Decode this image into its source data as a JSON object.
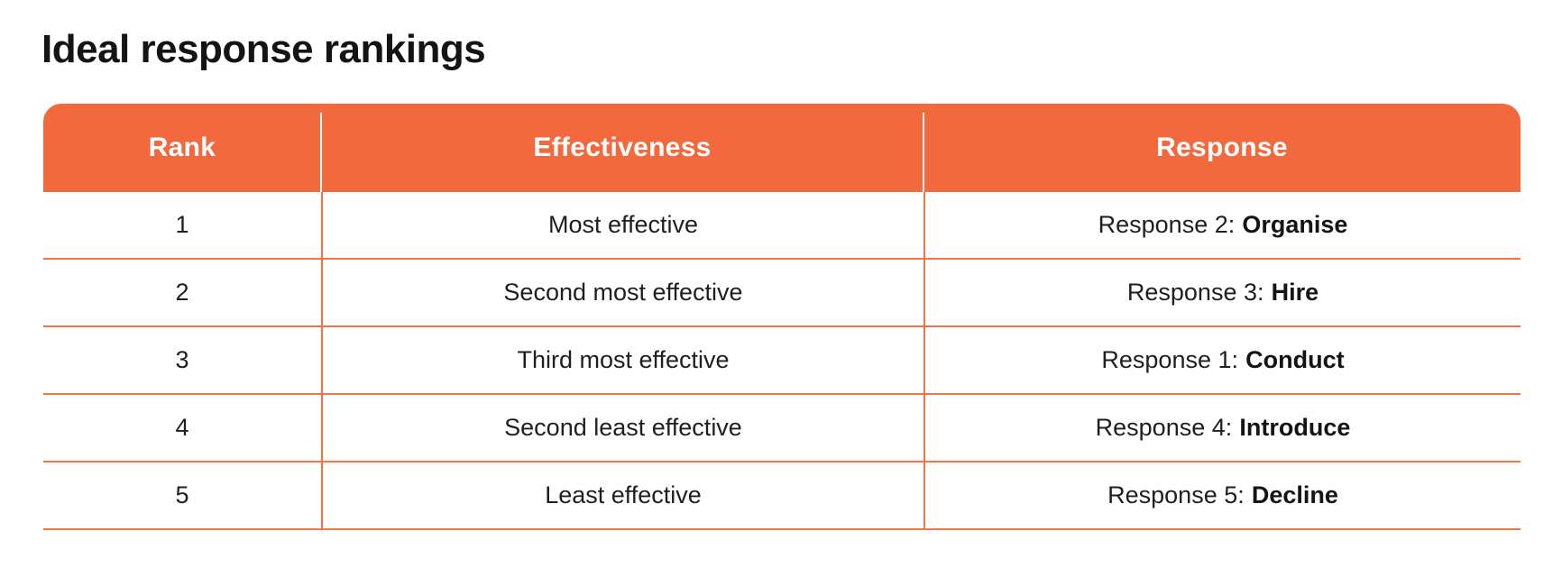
{
  "page": {
    "title": "Ideal response rankings"
  },
  "colors": {
    "accent_orange": "#f1693c",
    "grid_line_orange": "#f37344",
    "header_text": "#ffffff",
    "body_text": "#1f1f1f",
    "background": "#ffffff"
  },
  "table": {
    "columns": [
      {
        "key": "rank",
        "label": "Rank"
      },
      {
        "key": "effectiveness",
        "label": "Effectiveness"
      },
      {
        "key": "response",
        "label": "Response"
      }
    ],
    "rows": [
      {
        "rank": "1",
        "effectiveness": "Most effective",
        "response_prefix": "Response 2:",
        "response_name": "Organise"
      },
      {
        "rank": "2",
        "effectiveness": "Second most effective",
        "response_prefix": "Response 3:",
        "response_name": "Hire"
      },
      {
        "rank": "3",
        "effectiveness": "Third most effective",
        "response_prefix": "Response 1:",
        "response_name": "Conduct"
      },
      {
        "rank": "4",
        "effectiveness": "Second least effective",
        "response_prefix": "Response 4:",
        "response_name": "Introduce"
      },
      {
        "rank": "5",
        "effectiveness": "Least effective",
        "response_prefix": "Response 5:",
        "response_name": "Decline"
      }
    ]
  }
}
